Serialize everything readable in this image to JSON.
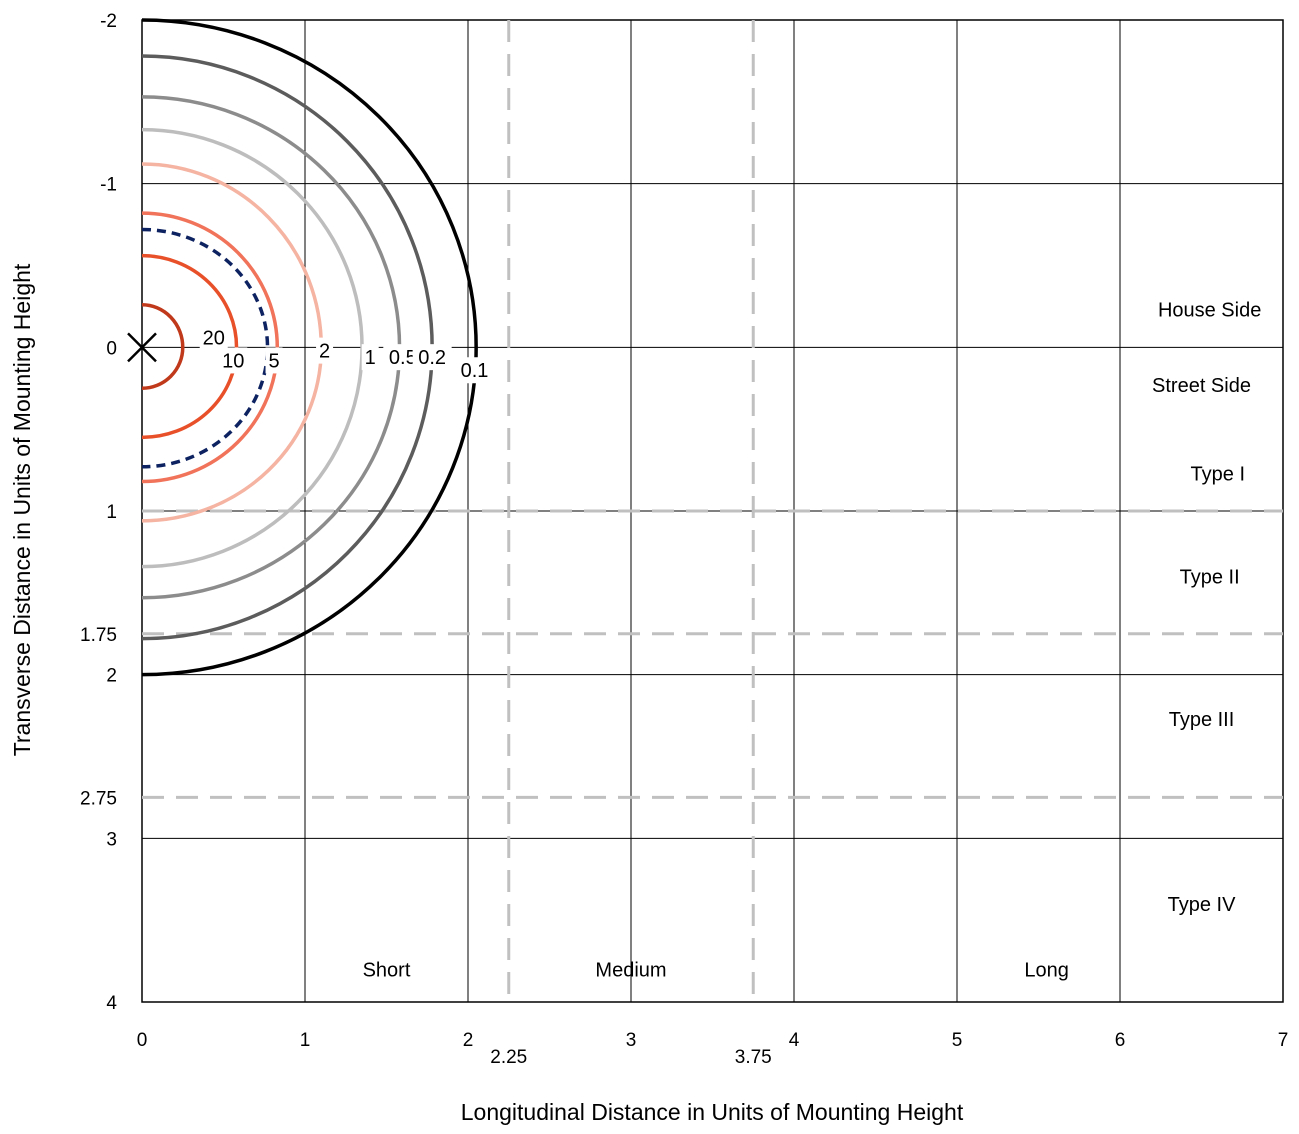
{
  "chart_data": {
    "type": "line",
    "subtype": "isofootcandle-contour",
    "xlabel": "Longitudinal Distance in Units of Mounting Height",
    "ylabel": "Transverse Distance in Units of Mounting Height",
    "xlim": [
      0,
      7
    ],
    "ylim": [
      -2,
      4
    ],
    "y_inverted": true,
    "grid": true,
    "x_ticks": [
      "0",
      "1",
      "2",
      "3",
      "4",
      "5",
      "6",
      "7"
    ],
    "y_ticks": [
      "-2",
      "-1",
      "0",
      "1",
      "2",
      "3",
      "4"
    ],
    "extra_x_ticks": [
      {
        "value": 2.25,
        "label": "2.25"
      },
      {
        "value": 3.75,
        "label": "3.75"
      }
    ],
    "extra_y_ticks": [
      {
        "value": 1.75,
        "label": "1.75"
      },
      {
        "value": 2.75,
        "label": "2.75"
      }
    ],
    "dashed_vertical_lines": [
      2.25,
      3.75
    ],
    "dashed_horizontal_lines": [
      1,
      1.75,
      2.75
    ],
    "luminaire_marker": {
      "x": 0,
      "y": 0,
      "symbol": "X"
    },
    "contours": [
      {
        "label": "20",
        "color": "#c0391b",
        "dash": false,
        "x_extent": 0.25,
        "y_top": -0.26,
        "y_bottom": 0.25
      },
      {
        "label": "10",
        "color": "#e8502a",
        "dash": false,
        "x_extent": 0.58,
        "y_top": -0.56,
        "y_bottom": 0.55
      },
      {
        "label": "5",
        "color": "#0d2260",
        "dash": true,
        "x_extent": 0.77,
        "y_top": -0.72,
        "y_bottom": 0.73
      },
      {
        "label": "",
        "color": "#f0735a",
        "dash": false,
        "x_extent": 0.83,
        "y_top": -0.82,
        "y_bottom": 0.82
      },
      {
        "label": "2",
        "color": "#f5b3a2",
        "dash": false,
        "x_extent": 1.1,
        "y_top": -1.12,
        "y_bottom": 1.06
      },
      {
        "label": "1",
        "color": "#bdbdbd",
        "dash": false,
        "x_extent": 1.35,
        "y_top": -1.33,
        "y_bottom": 1.34
      },
      {
        "label": "0.5",
        "color": "#8c8c8c",
        "dash": false,
        "x_extent": 1.58,
        "y_top": -1.53,
        "y_bottom": 1.53
      },
      {
        "label": "0.2",
        "color": "#5c5c5c",
        "dash": false,
        "x_extent": 1.78,
        "y_top": -1.78,
        "y_bottom": 1.78
      },
      {
        "label": "0.1",
        "color": "#000000",
        "dash": false,
        "x_extent": 2.05,
        "y_top": -2.0,
        "y_bottom": 2.0
      }
    ],
    "contour_labels": [
      {
        "text": "20",
        "x": 0.44,
        "y": -0.06
      },
      {
        "text": "10",
        "x": 0.56,
        "y": 0.08
      },
      {
        "text": "5",
        "x": 0.81,
        "y": 0.08
      },
      {
        "text": "2",
        "x": 1.12,
        "y": 0.02
      },
      {
        "text": "1",
        "x": 1.4,
        "y": 0.06
      },
      {
        "text": "0.5",
        "x": 1.6,
        "y": 0.06
      },
      {
        "text": "0.2",
        "x": 1.78,
        "y": 0.06
      },
      {
        "text": "0.1",
        "x": 2.04,
        "y": 0.14
      }
    ],
    "region_labels": [
      {
        "text": "House Side",
        "x": 6.55,
        "y": -0.23
      },
      {
        "text": "Street Side",
        "x": 6.5,
        "y": 0.23
      },
      {
        "text": "Type I",
        "x": 6.6,
        "y": 0.77
      },
      {
        "text": "Type II",
        "x": 6.55,
        "y": 1.4
      },
      {
        "text": "Type III",
        "x": 6.5,
        "y": 2.27
      },
      {
        "text": "Type IV",
        "x": 6.5,
        "y": 3.4
      },
      {
        "text": "Short",
        "x": 1.5,
        "y": 3.8
      },
      {
        "text": "Medium",
        "x": 3.0,
        "y": 3.8
      },
      {
        "text": "Long",
        "x": 5.55,
        "y": 3.8
      }
    ]
  }
}
